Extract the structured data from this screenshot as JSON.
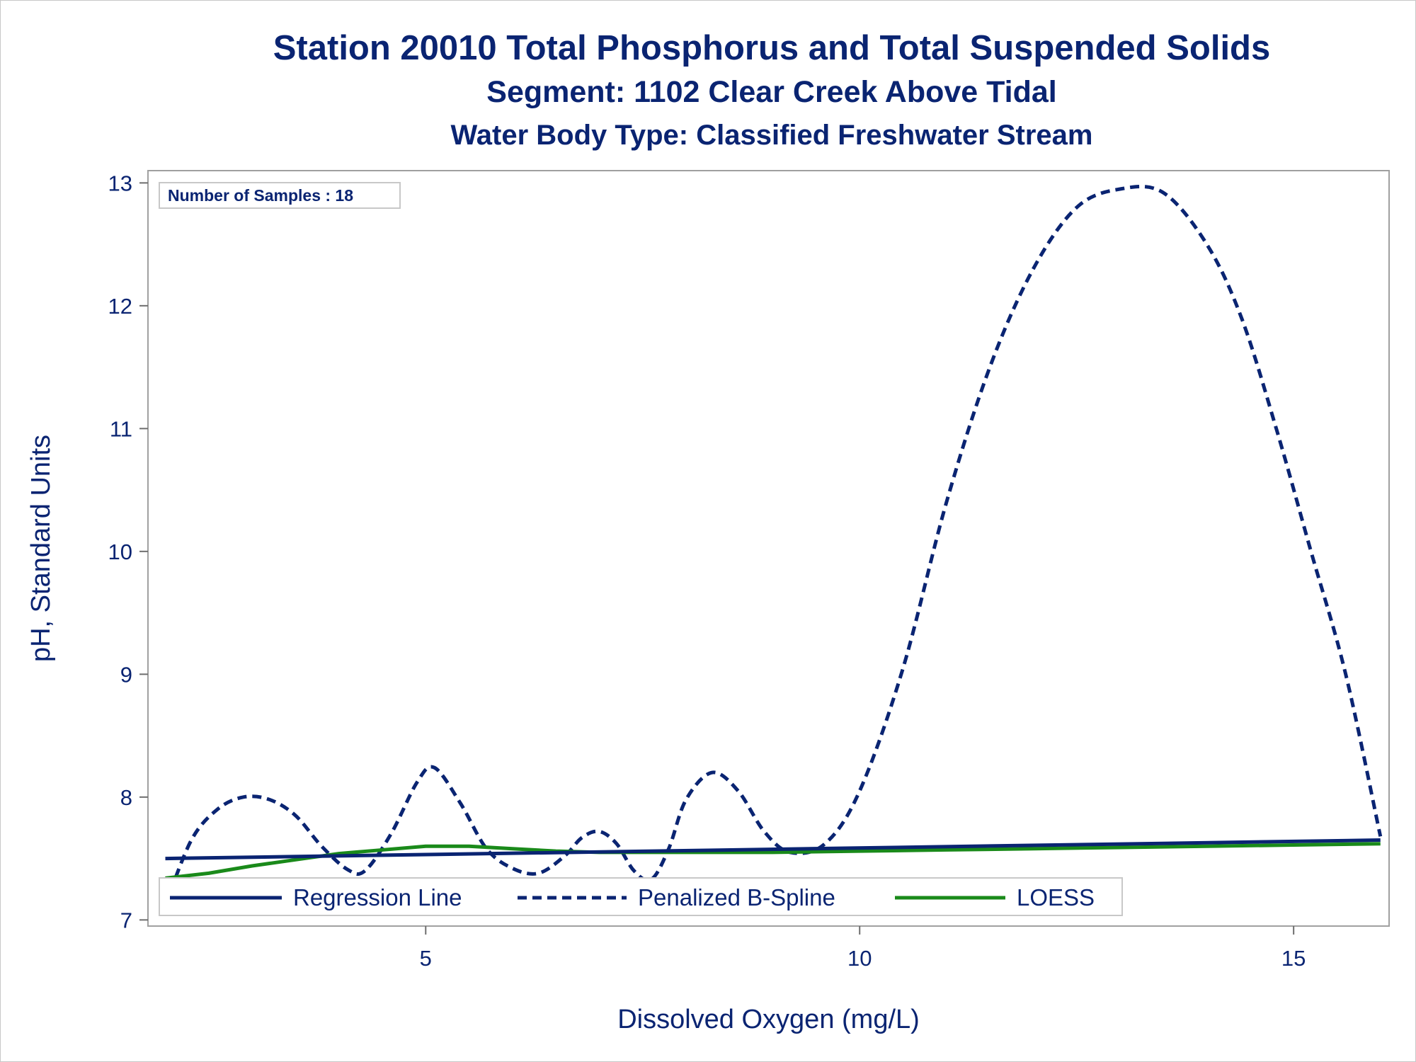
{
  "titles": {
    "line1": "Station 20010  Total Phosphorus and Total Suspended Solids",
    "line2": "Segment: 1102  Clear Creek Above Tidal",
    "line3": "Water Body Type: Classified Freshwater Stream"
  },
  "inset_label": "Number of Samples : 18",
  "colors": {
    "text": "#0a2472",
    "regression": "#0a2472",
    "spline": "#0a2472",
    "loess": "#1a8a1a",
    "frame": "#a0a0a0"
  },
  "chart_data": {
    "type": "line",
    "xlabel": "Dissolved Oxygen (mg/L)",
    "ylabel": "pH, Standard Units",
    "xlim": [
      1.8,
      16.1
    ],
    "ylim": [
      6.95,
      13.1
    ],
    "xticks": [
      5,
      10,
      15
    ],
    "yticks": [
      7,
      8,
      9,
      10,
      11,
      12,
      13
    ],
    "legend_position": "bottom-left, inside plot",
    "series": [
      {
        "name": "Regression Line",
        "style": "solid",
        "x": [
          2.0,
          16.0
        ],
        "y": [
          7.5,
          7.65
        ]
      },
      {
        "name": "Penalized B-Spline",
        "style": "dashed",
        "x": [
          2.0,
          2.3,
          2.6,
          2.9,
          3.2,
          3.5,
          3.8,
          4.1,
          4.3,
          4.6,
          4.9,
          5.1,
          5.4,
          5.7,
          6.0,
          6.3,
          6.6,
          6.8,
          7.0,
          7.2,
          7.4,
          7.6,
          7.8,
          8.0,
          8.3,
          8.6,
          8.9,
          9.2,
          9.6,
          10.0,
          10.5,
          11.0,
          11.5,
          12.0,
          12.5,
          13.0,
          13.5,
          14.0,
          14.4,
          14.8,
          15.2,
          15.6,
          16.0
        ],
        "y": [
          7.12,
          7.65,
          7.9,
          8.0,
          7.98,
          7.85,
          7.6,
          7.41,
          7.4,
          7.7,
          8.12,
          8.24,
          7.95,
          7.58,
          7.42,
          7.38,
          7.52,
          7.67,
          7.72,
          7.62,
          7.4,
          7.33,
          7.58,
          7.98,
          8.2,
          8.05,
          7.72,
          7.55,
          7.62,
          8.05,
          9.05,
          10.4,
          11.5,
          12.3,
          12.8,
          12.95,
          12.92,
          12.5,
          11.9,
          11.0,
          10.0,
          9.0,
          7.68
        ]
      },
      {
        "name": "LOESS",
        "style": "solid",
        "x": [
          2.0,
          2.5,
          3.0,
          3.5,
          4.0,
          4.5,
          5.0,
          5.5,
          6.0,
          6.5,
          7.0,
          8.0,
          9.0,
          10.0,
          11.0,
          12.0,
          13.0,
          14.0,
          15.0,
          16.0
        ],
        "y": [
          7.34,
          7.38,
          7.44,
          7.49,
          7.54,
          7.57,
          7.6,
          7.6,
          7.58,
          7.56,
          7.55,
          7.55,
          7.55,
          7.56,
          7.57,
          7.58,
          7.59,
          7.6,
          7.61,
          7.62
        ]
      }
    ]
  }
}
